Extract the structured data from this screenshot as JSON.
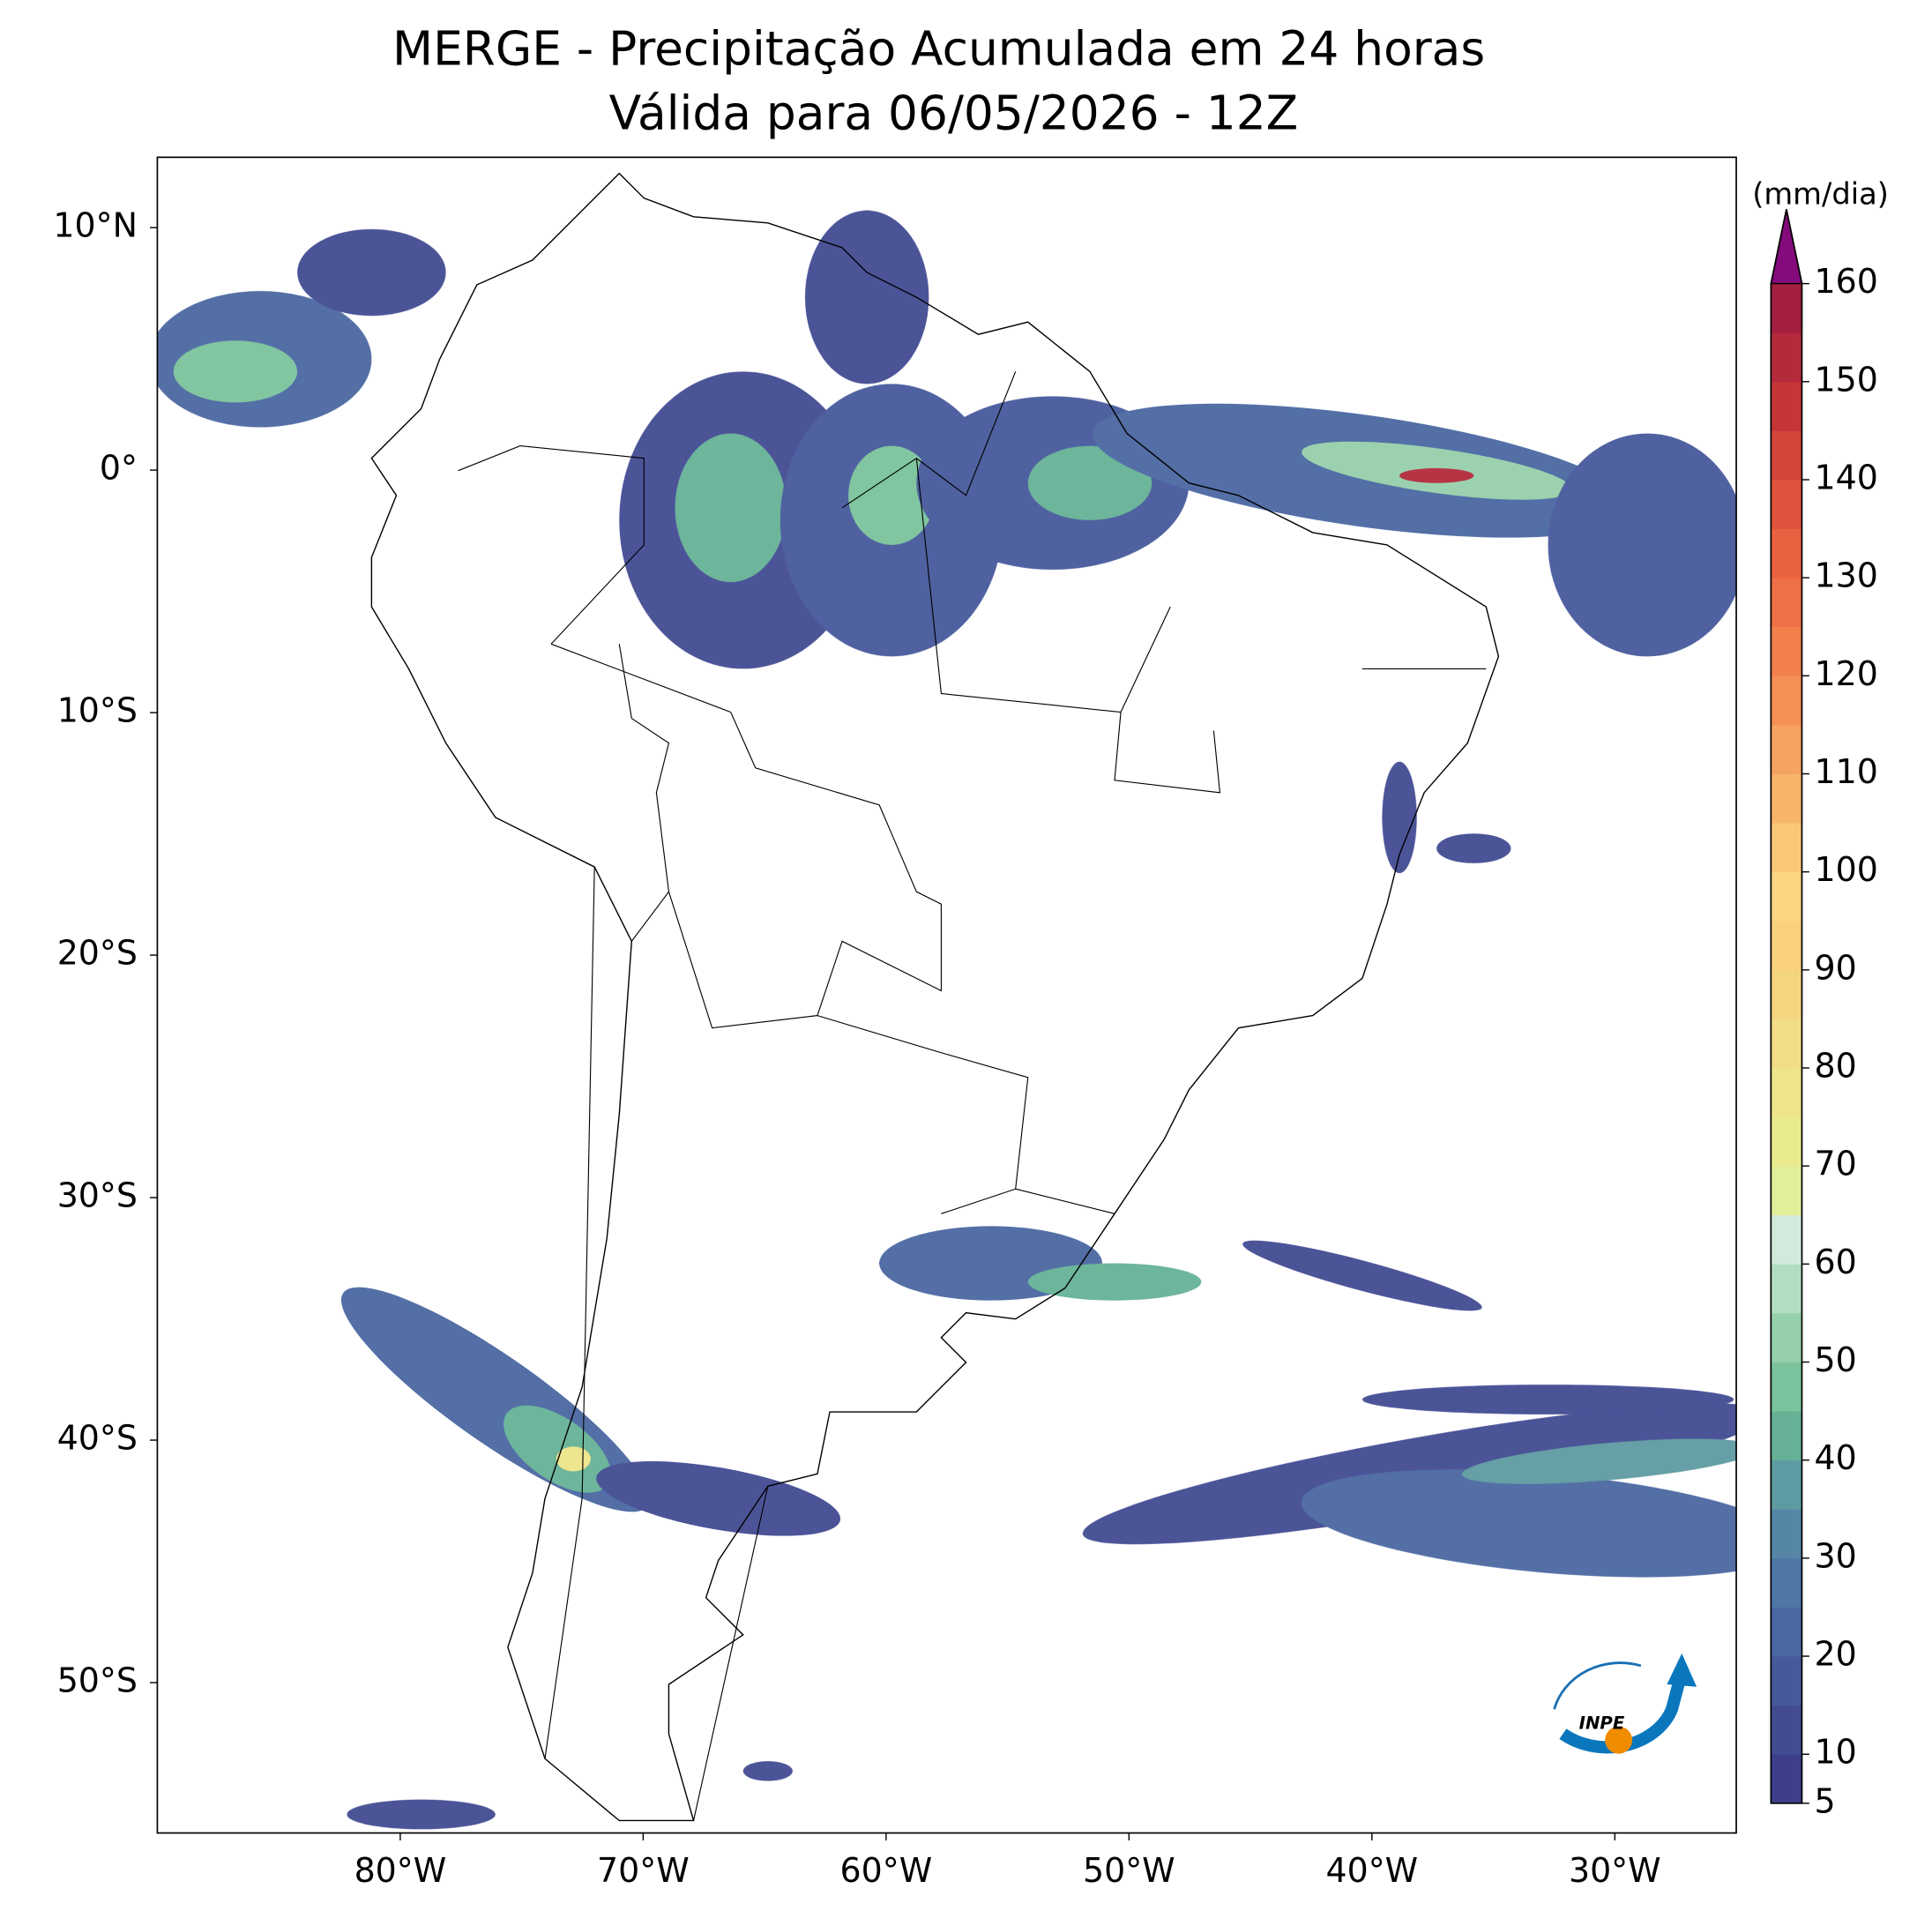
{
  "chart_data": {
    "type": "map",
    "title": "MERGE - Precipitação Acumulada em 24 horas",
    "subtitle": "Válida para 06/05/2026 - 12Z",
    "xlim": [
      -90,
      -25
    ],
    "ylim": [
      -56.2,
      12.9
    ],
    "xticks": [
      {
        "value": -80,
        "label": "80°W"
      },
      {
        "value": -70,
        "label": "70°W"
      },
      {
        "value": -60,
        "label": "60°W"
      },
      {
        "value": -50,
        "label": "50°W"
      },
      {
        "value": -40,
        "label": "40°W"
      },
      {
        "value": -30,
        "label": "30°W"
      }
    ],
    "yticks": [
      {
        "value": 10,
        "label": "10°N"
      },
      {
        "value": 0,
        "label": "0°"
      },
      {
        "value": -10,
        "label": "10°S"
      },
      {
        "value": -20,
        "label": "20°S"
      },
      {
        "value": -30,
        "label": "30°S"
      },
      {
        "value": -40,
        "label": "40°S"
      },
      {
        "value": -50,
        "label": "50°S"
      }
    ],
    "colorbar": {
      "label": "(mm/dia)",
      "levels": [
        5,
        10,
        15,
        20,
        25,
        30,
        35,
        40,
        45,
        50,
        55,
        60,
        65,
        70,
        75,
        80,
        85,
        90,
        95,
        100,
        105,
        110,
        115,
        120,
        125,
        130,
        135,
        140,
        145,
        150,
        155,
        160
      ],
      "colors": [
        "#3e3f8b",
        "#434b93",
        "#46599b",
        "#4a68a2",
        "#4f77a5",
        "#5686a5",
        "#5e9aa1",
        "#66b196",
        "#7bc39c",
        "#96cfab",
        "#b3ddc1",
        "#d2e9dc",
        "#e3ee9a",
        "#e9eb8d",
        "#eee489",
        "#f2dd86",
        "#f6d580",
        "#f9d07c",
        "#fbd683",
        "#fac777",
        "#f8b46b",
        "#f6a260",
        "#f49056",
        "#f2804d",
        "#ee7046",
        "#e86240",
        "#df533d",
        "#d4443a",
        "#c63538",
        "#b42a3c",
        "#a31f40"
      ],
      "extend_color": "#850a7c",
      "ticks": [
        5,
        10,
        20,
        30,
        40,
        50,
        60,
        70,
        80,
        90,
        100,
        110,
        120,
        130,
        140,
        150,
        160
      ]
    },
    "logo_text": "INPE"
  }
}
